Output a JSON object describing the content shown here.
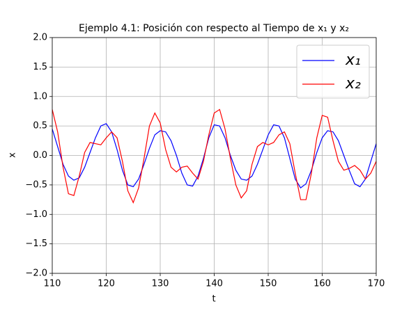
{
  "chart_data": {
    "type": "line",
    "title": "Ejemplo 4.1: Posición con respecto al Tiempo de x₁ y x₂",
    "xlabel": "t",
    "ylabel": "x",
    "xlim": [
      110,
      170
    ],
    "ylim": [
      -2.0,
      2.0
    ],
    "xticks": [
      110,
      120,
      130,
      140,
      150,
      160,
      170
    ],
    "yticks": [
      {
        "value": -2.0,
        "label": "−2.0"
      },
      {
        "value": -1.5,
        "label": "−1.5"
      },
      {
        "value": -1.0,
        "label": "−1.0"
      },
      {
        "value": -0.5,
        "label": "−0.5"
      },
      {
        "value": 0.0,
        "label": "0.0"
      },
      {
        "value": 0.5,
        "label": "0.5"
      },
      {
        "value": 1.0,
        "label": "1.0"
      },
      {
        "value": 1.5,
        "label": "1.5"
      },
      {
        "value": 2.0,
        "label": "2.0"
      }
    ],
    "grid": true,
    "legend": "upper right",
    "x": [
      110,
      111,
      112,
      113,
      114,
      115,
      116,
      117,
      118,
      119,
      120,
      121,
      122,
      123,
      124,
      125,
      126,
      127,
      128,
      129,
      130,
      131,
      132,
      133,
      134,
      135,
      136,
      137,
      138,
      139,
      140,
      141,
      142,
      143,
      144,
      145,
      146,
      147,
      148,
      149,
      150,
      151,
      152,
      153,
      154,
      155,
      156,
      157,
      158,
      159,
      160,
      161,
      162,
      163,
      164,
      165,
      166,
      167,
      168,
      169,
      170
    ],
    "series": [
      {
        "name": "x₁",
        "color": "#0000ff",
        "values": [
          0.45,
          0.15,
          -0.15,
          -0.35,
          -0.42,
          -0.38,
          -0.2,
          0.05,
          0.3,
          0.5,
          0.54,
          0.4,
          0.1,
          -0.25,
          -0.5,
          -0.53,
          -0.4,
          -0.15,
          0.12,
          0.35,
          0.42,
          0.4,
          0.25,
          0.0,
          -0.3,
          -0.5,
          -0.52,
          -0.35,
          -0.05,
          0.3,
          0.52,
          0.5,
          0.3,
          0.0,
          -0.25,
          -0.4,
          -0.42,
          -0.35,
          -0.15,
          0.1,
          0.35,
          0.52,
          0.5,
          0.3,
          -0.05,
          -0.4,
          -0.55,
          -0.48,
          -0.25,
          0.05,
          0.3,
          0.42,
          0.4,
          0.25,
          0.0,
          -0.25,
          -0.48,
          -0.53,
          -0.4,
          -0.1,
          0.2
        ]
      },
      {
        "name": "x₂",
        "color": "#ff0000",
        "values": [
          0.78,
          0.4,
          -0.2,
          -0.65,
          -0.68,
          -0.35,
          0.05,
          0.22,
          0.2,
          0.18,
          0.3,
          0.4,
          0.3,
          -0.1,
          -0.6,
          -0.8,
          -0.55,
          -0.05,
          0.5,
          0.72,
          0.55,
          0.1,
          -0.2,
          -0.28,
          -0.2,
          -0.18,
          -0.3,
          -0.4,
          -0.1,
          0.35,
          0.72,
          0.78,
          0.45,
          -0.05,
          -0.5,
          -0.72,
          -0.6,
          -0.15,
          0.15,
          0.22,
          0.18,
          0.22,
          0.35,
          0.4,
          0.2,
          -0.3,
          -0.75,
          -0.75,
          -0.3,
          0.3,
          0.68,
          0.65,
          0.25,
          -0.1,
          -0.25,
          -0.22,
          -0.17,
          -0.25,
          -0.4,
          -0.3,
          -0.1
        ]
      }
    ]
  }
}
